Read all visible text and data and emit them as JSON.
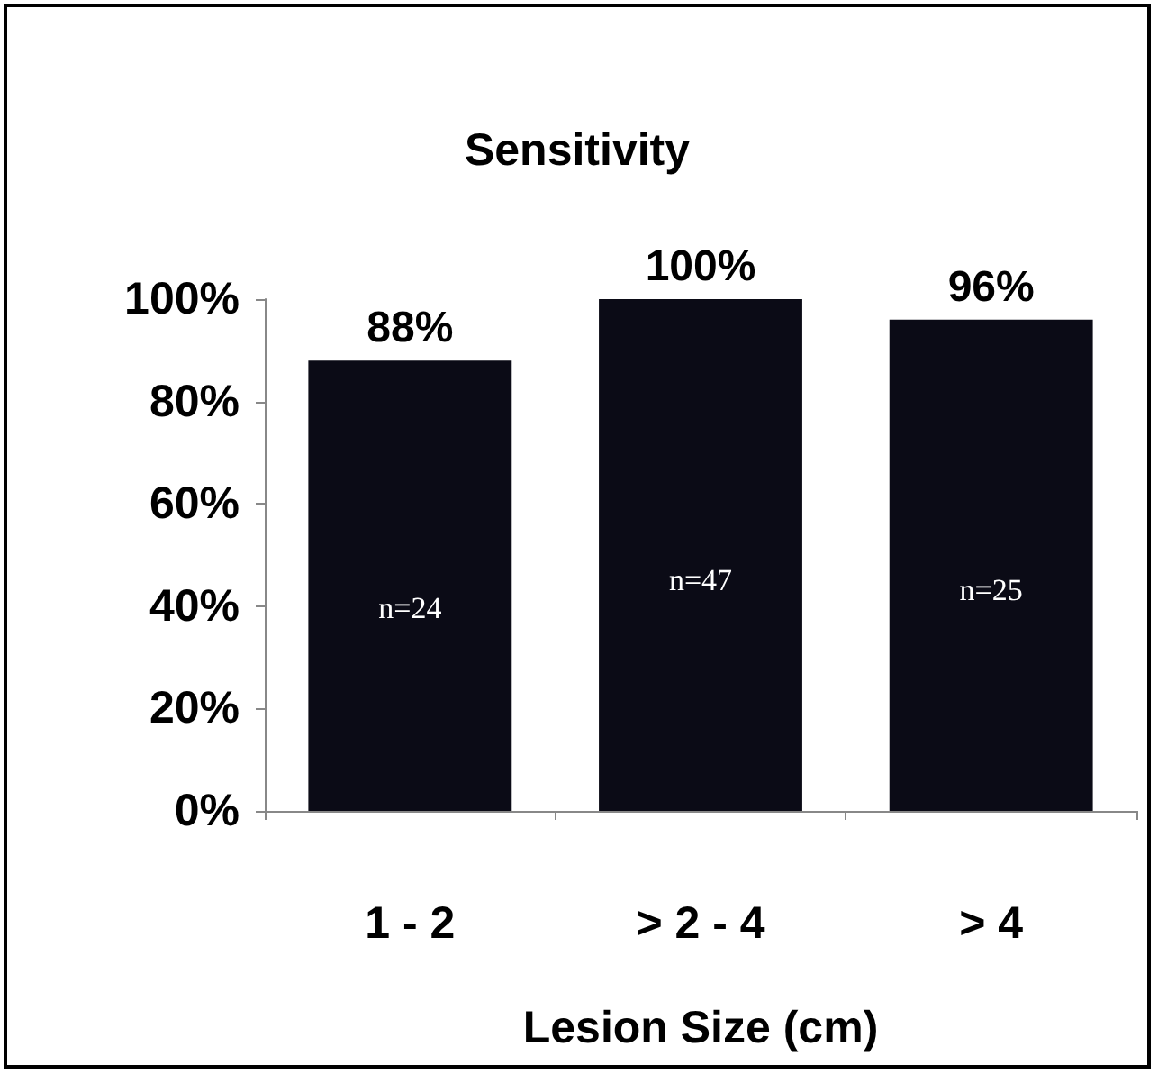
{
  "chart_data": {
    "type": "bar",
    "title": "Sensitivity",
    "xlabel": "Lesion Size (cm)",
    "categories": [
      "1 - 2",
      "> 2 - 4",
      "> 4"
    ],
    "values": [
      88,
      100,
      96
    ],
    "value_labels": [
      "88%",
      "100%",
      "96%"
    ],
    "color": "#0b0b16",
    "ylim": [
      0,
      100
    ],
    "yticks": [
      {
        "value": 0,
        "label": "0%"
      },
      {
        "value": 20,
        "label": "20%"
      },
      {
        "value": 40,
        "label": "40%"
      },
      {
        "value": 60,
        "label": "60%"
      },
      {
        "value": 80,
        "label": "80%"
      },
      {
        "value": 100,
        "label": "100%"
      }
    ],
    "annotations": [
      "n=24",
      "n=47",
      "n=25"
    ],
    "grid": false
  }
}
